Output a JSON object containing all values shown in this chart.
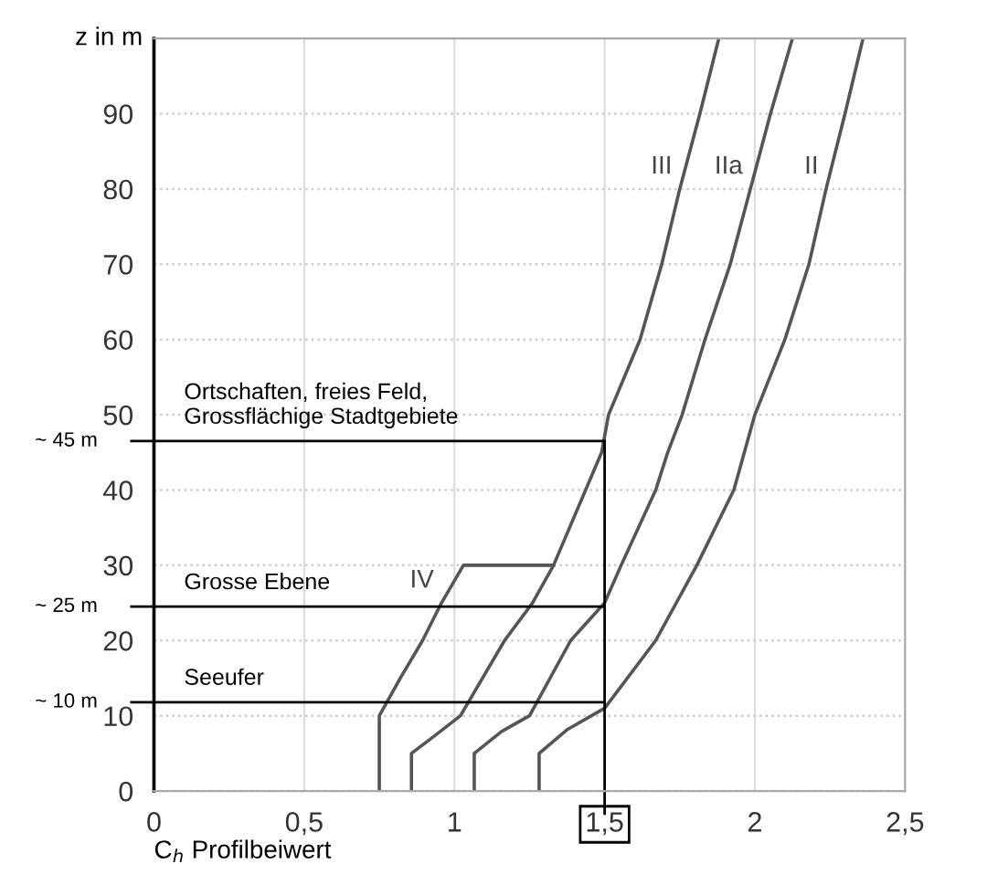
{
  "chart_data": {
    "type": "line",
    "xlabel": "C$_{h}$ Profilbeiwert",
    "ylabel": "z in m",
    "xlim": [
      0,
      2.5
    ],
    "ylim": [
      0,
      100
    ],
    "xticks": [
      0,
      {
        "value": 0.5,
        "label": "0,5"
      },
      1,
      {
        "value": 1.5,
        "label": "1,5"
      },
      2,
      {
        "value": 2.5,
        "label": "2,5"
      }
    ],
    "yticks": [
      0,
      10,
      20,
      30,
      40,
      50,
      60,
      70,
      80,
      90
    ],
    "grid": true,
    "legend": false,
    "marker": "none",
    "line_style": "solid",
    "series": [
      {
        "name": "IV",
        "color": "#555555",
        "x": [
          0.75,
          0.75,
          0.82,
          0.894,
          0.957,
          1.03,
          1.33
        ],
        "values": [
          0,
          10,
          15,
          20,
          25,
          30,
          30
        ]
      },
      {
        "name": "III",
        "color": "#555555",
        "x": [
          0.857,
          0.857,
          0.936,
          1.02,
          1.167,
          1.26,
          1.33,
          1.49,
          1.513,
          1.618,
          1.69,
          1.75,
          1.817,
          1.88
        ],
        "values": [
          0,
          5,
          7.4,
          10,
          20,
          25,
          30,
          45,
          50,
          60,
          70,
          80,
          90,
          100
        ]
      },
      {
        "name": "IIa",
        "color": "#555555",
        "x": [
          1.066,
          1.066,
          1.157,
          1.25,
          1.387,
          1.5,
          1.555,
          1.67,
          1.71,
          1.758,
          1.834,
          1.918,
          1.985,
          2.052,
          2.125
        ],
        "values": [
          0,
          5,
          7.9,
          10,
          20,
          25,
          30,
          40,
          45,
          50,
          60,
          70,
          80,
          90,
          100
        ]
      },
      {
        "name": "II",
        "color": "#555555",
        "x": [
          1.282,
          1.282,
          1.377,
          1.5,
          1.67,
          1.807,
          1.93,
          2.0,
          2.1,
          2.18,
          2.237,
          2.3,
          2.36
        ],
        "values": [
          0,
          5,
          8.2,
          11,
          20,
          30,
          40,
          50,
          60,
          70,
          80,
          90,
          100
        ]
      }
    ],
    "ref_lines": [
      {
        "axis": "y",
        "value": 46.5,
        "label": "~ 45 m",
        "color": "#000000"
      },
      {
        "axis": "y",
        "value": 24.5,
        "label": "~ 25 m",
        "color": "#000000"
      },
      {
        "axis": "y",
        "value": 11.8,
        "label": "~ 10 m",
        "color": "#000000"
      },
      {
        "axis": "x",
        "value": 1.5,
        "color": "#000000"
      }
    ],
    "annotations": [
      "Ortschaften, freies Feld,\nGrossflächige Stadtgebiete",
      "Grosse Ebene",
      "Seeufer"
    ]
  }
}
